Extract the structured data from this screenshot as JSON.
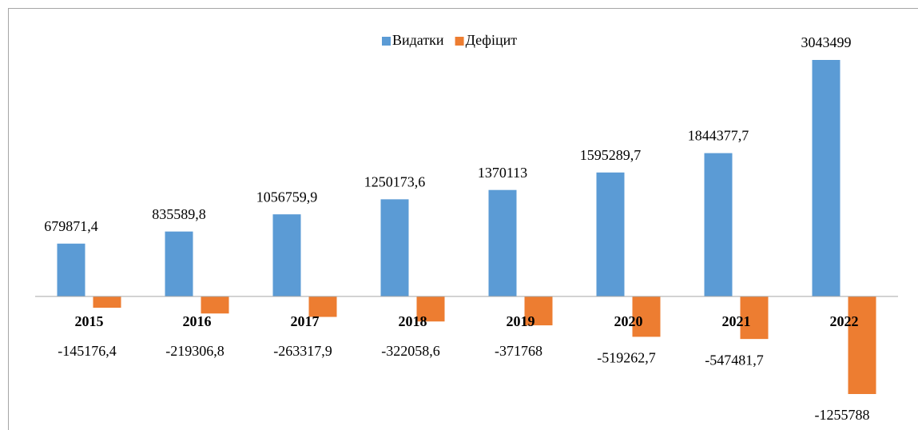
{
  "chart_data": {
    "type": "bar",
    "categories": [
      "2015",
      "2016",
      "2017",
      "2018",
      "2019",
      "2020",
      "2021",
      "2022"
    ],
    "series": [
      {
        "name": "Видатки",
        "color": "#5b9bd5",
        "values": [
          679871.4,
          835589.8,
          1056759.9,
          1250173.6,
          1370113,
          1595289.7,
          1844377.7,
          3043499
        ],
        "value_labels": [
          "679871,4",
          "835589,8",
          "1056759,9",
          "1250173,6",
          "1370113",
          "1595289,7",
          "1844377,7",
          "3043499"
        ]
      },
      {
        "name": "Дефіцит",
        "color": "#ed7d31",
        "values": [
          -145176.4,
          -219306.8,
          -263317.9,
          -322058.6,
          -371768,
          -519262.7,
          -547481.7,
          -1255788
        ],
        "value_labels": [
          "-145176,4",
          "-219306,8",
          "-263317,9",
          "-322058,6",
          "-371768",
          "-519262,7",
          "-547481,7",
          "-1255788"
        ]
      }
    ],
    "legend": "top"
  }
}
